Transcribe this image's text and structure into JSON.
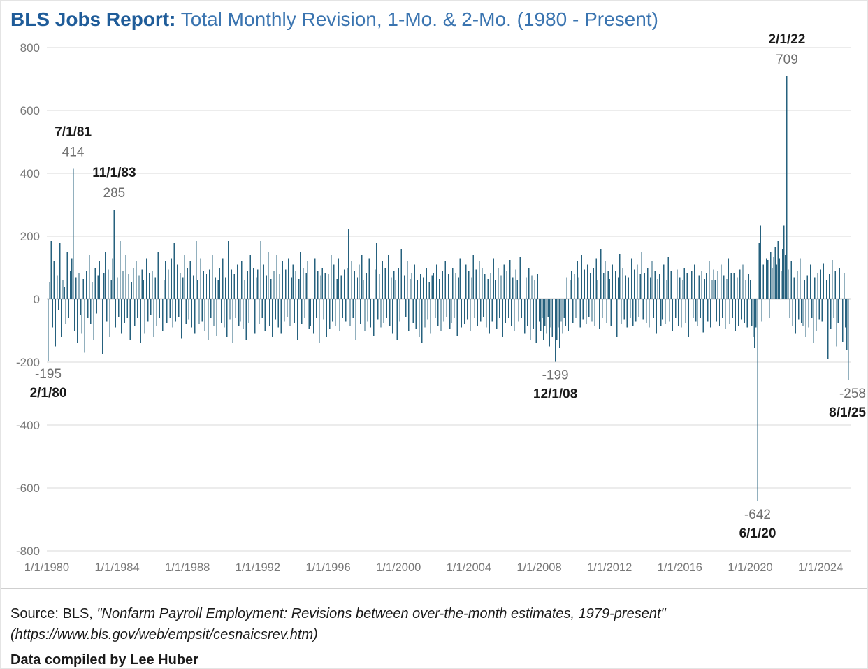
{
  "title": {
    "prefix": "BLS Jobs Report:",
    "rest": " Total Monthly Revision, 1-Mo. & 2-Mo. (1980 - Present)"
  },
  "footer": {
    "source_prefix": "Source: BLS, ",
    "source_quote": "\"Nonfarm Payroll Employment: Revisions between over-the-month estimates, 1979-present\"",
    "source_url_line": "(https://www.bls.gov/web/empsit/cesnaicsrev.htm)",
    "compiled_by": "Data compiled by Lee Huber"
  },
  "colors": {
    "bar": "#26617e",
    "grid": "#d9d9d9",
    "axis_label": "#787878",
    "annotation_value": "#6e6e6e",
    "annotation_date": "#1a1a1a",
    "title_prefix": "#1f5c99",
    "title_rest": "#3a74b0"
  },
  "chart_data": {
    "type": "bar",
    "title": "BLS Jobs Report: Total Monthly Revision, 1-Mo. & 2-Mo. (1980 - Present)",
    "xlabel": "",
    "ylabel": "",
    "frequency": "monthly",
    "x_start": "2/1/1980",
    "x_end": "8/1/2025",
    "ylim": [
      -800,
      800
    ],
    "grid": true,
    "y_ticks": [
      800,
      600,
      400,
      200,
      0,
      -200,
      -400,
      -600,
      -800
    ],
    "x_ticks": [
      {
        "label": "1/1/1980",
        "month": -1
      },
      {
        "label": "1/1/1984",
        "month": 47
      },
      {
        "label": "1/1/1988",
        "month": 95
      },
      {
        "label": "1/1/1992",
        "month": 143
      },
      {
        "label": "1/1/1996",
        "month": 191
      },
      {
        "label": "1/1/2000",
        "month": 239
      },
      {
        "label": "1/1/2004",
        "month": 287
      },
      {
        "label": "1/1/2008",
        "month": 335
      },
      {
        "label": "1/1/2012",
        "month": 383
      },
      {
        "label": "1/1/2016",
        "month": 431
      },
      {
        "label": "1/1/2020",
        "month": 479
      },
      {
        "label": "1/1/2024",
        "month": 527
      }
    ],
    "annotations": [
      {
        "date": "2/1/80",
        "value": "-195",
        "month": 0,
        "position": "below"
      },
      {
        "date": "7/1/81",
        "value": "414",
        "month": 17,
        "position": "above"
      },
      {
        "date": "11/1/83",
        "value": "285",
        "month": 45,
        "position": "above"
      },
      {
        "date": "12/1/08",
        "value": "-199",
        "month": 346,
        "position": "below"
      },
      {
        "date": "6/1/20",
        "value": "-642",
        "month": 484,
        "position": "below"
      },
      {
        "date": "2/1/22",
        "value": "709",
        "month": 504,
        "position": "above"
      },
      {
        "date": "8/1/25",
        "value": "-258",
        "month": 546,
        "position": "below"
      }
    ],
    "values": [
      -195,
      55,
      185,
      -90,
      120,
      -150,
      75,
      -35,
      180,
      -120,
      60,
      40,
      -80,
      150,
      -60,
      90,
      130,
      414,
      -100,
      70,
      -140,
      85,
      -50,
      -110,
      65,
      -170,
      90,
      -60,
      140,
      -80,
      55,
      -130,
      100,
      -45,
      75,
      120,
      -180,
      -175,
      85,
      150,
      -70,
      95,
      -120,
      60,
      130,
      285,
      -90,
      70,
      -55,
      185,
      -110,
      90,
      -75,
      140,
      -60,
      80,
      -130,
      55,
      100,
      -85,
      120,
      -60,
      75,
      -140,
      95,
      60,
      -110,
      130,
      -70,
      85,
      -50,
      90,
      -120,
      70,
      -85,
      150,
      -60,
      80,
      -100,
      60,
      120,
      -75,
      95,
      -60,
      130,
      -90,
      180,
      -70,
      110,
      -55,
      85,
      -125,
      70,
      140,
      -80,
      100,
      -65,
      120,
      -90,
      75,
      -110,
      185,
      60,
      -80,
      130,
      -70,
      90,
      -100,
      80,
      -130,
      95,
      -60,
      140,
      -85,
      70,
      -115,
      60,
      100,
      -75,
      130,
      -90,
      70,
      -120,
      185,
      -65,
      95,
      -140,
      80,
      -60,
      110,
      -85,
      -70,
      120,
      -95,
      60,
      -130,
      90,
      -75,
      140,
      -60,
      100,
      -110,
      70,
      95,
      -80,
      185,
      -60,
      110,
      -100,
      75,
      150,
      -85,
      65,
      -120,
      90,
      -65,
      140,
      -90,
      80,
      -110,
      120,
      -70,
      95,
      -55,
      130,
      -85,
      70,
      110,
      -75,
      90,
      -130,
      65,
      150,
      -80,
      100,
      -60,
      85,
      120,
      -95,
      -85,
      70,
      -110,
      130,
      -60,
      90,
      -140,
      75,
      100,
      -65,
      85,
      -120,
      80,
      -95,
      140,
      -70,
      110,
      -85,
      65,
      130,
      -100,
      75,
      -60,
      95,
      -70,
      100,
      225,
      -85,
      120,
      -60,
      90,
      -130,
      70,
      110,
      -80,
      140,
      60,
      -100,
      85,
      -70,
      130,
      -90,
      75,
      -115,
      95,
      180,
      -65,
      80,
      -90,
      120,
      -75,
      100,
      -60,
      140,
      -85,
      70,
      -110,
      90,
      60,
      -130,
      100,
      -70,
      160,
      -90,
      75,
      -55,
      120,
      -100,
      65,
      85,
      -75,
      110,
      -95,
      60,
      -120,
      80,
      -140,
      70,
      -90,
      100,
      -65,
      55,
      -110,
      75,
      85,
      -60,
      110,
      -85,
      65,
      -100,
      90,
      -70,
      120,
      -55,
      80,
      -95,
      -75,
      100,
      -60,
      85,
      -115,
      70,
      130,
      -90,
      60,
      -80,
      110,
      -65,
      90,
      -100,
      70,
      140,
      -60,
      95,
      -85,
      120,
      -70,
      100,
      -55,
      80,
      -90,
      65,
      -110,
      85,
      -70,
      130,
      60,
      -95,
      100,
      -60,
      75,
      -120,
      110,
      -75,
      90,
      -60,
      125,
      -85,
      70,
      -100,
      95,
      60,
      -70,
      135,
      -60,
      90,
      -110,
      70,
      -85,
      100,
      -130,
      75,
      -95,
      60,
      -140,
      80,
      -70,
      -100,
      -60,
      -130,
      -85,
      -110,
      -55,
      -150,
      -90,
      -120,
      -160,
      -199,
      -130,
      -90,
      -155,
      -70,
      -110,
      -60,
      -85,
      70,
      -100,
      60,
      90,
      -75,
      80,
      -60,
      120,
      70,
      -90,
      140,
      -65,
      95,
      -80,
      110,
      -55,
      85,
      -70,
      100,
      -85,
      130,
      60,
      -95,
      160,
      -60,
      85,
      120,
      -75,
      90,
      65,
      -85,
      110,
      -60,
      90,
      -120,
      70,
      145,
      -80,
      100,
      -65,
      75,
      -90,
      70,
      -60,
      130,
      -85,
      95,
      -70,
      110,
      -55,
      80,
      150,
      -65,
      85,
      -75,
      100,
      -90,
      70,
      120,
      -60,
      90,
      -110,
      65,
      80,
      -85,
      -65,
      110,
      -80,
      60,
      135,
      -70,
      90,
      -100,
      75,
      -60,
      95,
      -85,
      70,
      -90,
      60,
      100,
      -75,
      85,
      -120,
      65,
      90,
      -60,
      110,
      -70,
      -85,
      75,
      -60,
      90,
      -105,
      65,
      85,
      -70,
      120,
      -90,
      60,
      95,
      60,
      -70,
      90,
      -85,
      110,
      -60,
      75,
      -95,
      65,
      130,
      -80,
      85,
      -60,
      85,
      -100,
      70,
      -85,
      95,
      -65,
      110,
      -75,
      60,
      -90,
      80,
      60,
      -85,
      -120,
      -155,
      -90,
      -642,
      180,
      235,
      -70,
      110,
      -85,
      130,
      125,
      -60,
      150,
      100,
      135,
      165,
      110,
      185,
      130,
      90,
      160,
      235,
      140,
      709,
      95,
      -60,
      120,
      -85,
      70,
      -110,
      90,
      -65,
      130,
      -75,
      -85,
      60,
      -120,
      75,
      -90,
      110,
      -60,
      -140,
      70,
      -100,
      85,
      -65,
      95,
      -70,
      115,
      -85,
      60,
      -190,
      80,
      -95,
      125,
      -60,
      90,
      -150,
      -75,
      100,
      -60,
      -135,
      85,
      -90,
      -160,
      -258
    ]
  }
}
